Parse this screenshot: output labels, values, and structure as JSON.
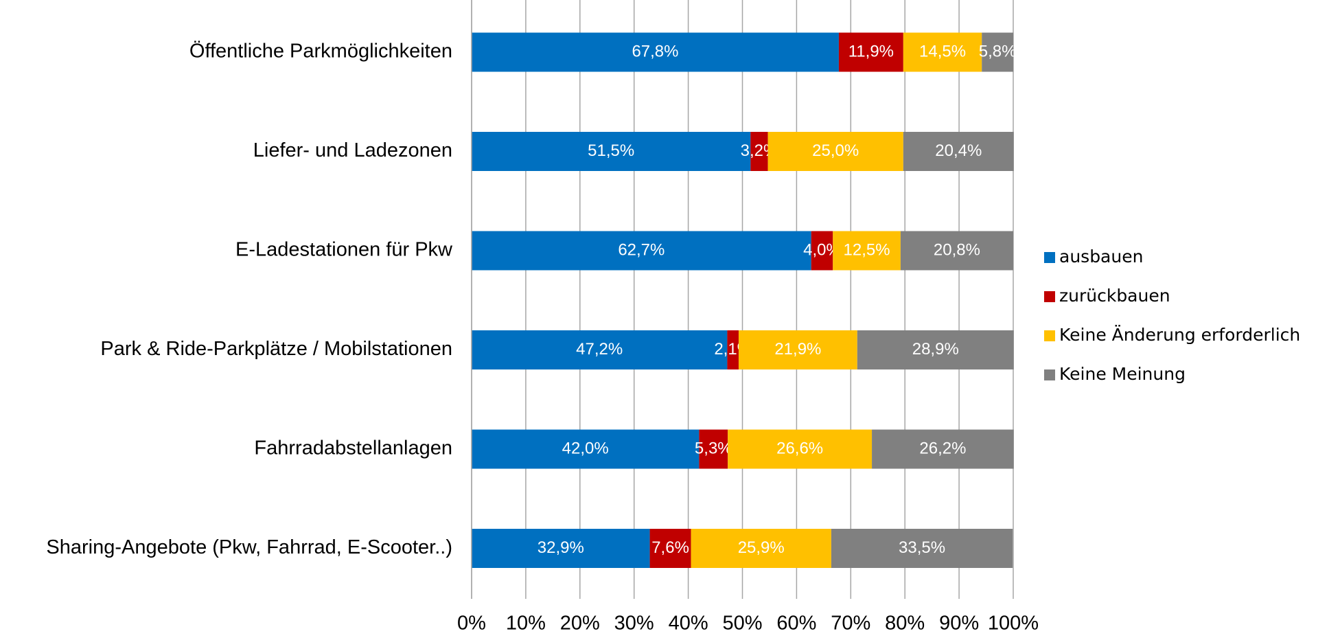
{
  "chart_data": {
    "type": "bar",
    "orientation": "horizontal",
    "stacked": true,
    "categories": [
      "Öffentliche Parkmöglichkeiten",
      "Liefer- und Ladezonen",
      "E-Ladestationen für Pkw",
      "Park & Ride-Parkplätze / Mobilstationen",
      "Fahrradabstellanlagen",
      "Sharing-Angebote (Pkw, Fahrrad, E-Scooter..)"
    ],
    "series": [
      {
        "name": "ausbauen",
        "color": "#0070c0",
        "values": [
          67.8,
          51.5,
          62.7,
          47.2,
          42.0,
          32.9
        ],
        "value_labels": [
          "67,8%",
          "51,5%",
          "62,7%",
          "47,2%",
          "42,0%",
          "32,9%"
        ]
      },
      {
        "name": "zurückbauen",
        "color": "#c00000",
        "values": [
          11.9,
          3.2,
          4.0,
          2.1,
          5.3,
          7.6
        ],
        "value_labels": [
          "11,9%",
          "3,2%",
          "4,0%",
          "2,1%",
          "5,3%",
          "7,6%"
        ]
      },
      {
        "name": "Keine Änderung erforderlich",
        "color": "#ffc000",
        "values": [
          14.5,
          25.0,
          12.5,
          21.9,
          26.6,
          25.9
        ],
        "value_labels": [
          "14,5%",
          "25,0%",
          "12,5%",
          "21,9%",
          "26,6%",
          "25,9%"
        ]
      },
      {
        "name": "Keine Meinung",
        "color": "#808080",
        "values": [
          5.8,
          20.4,
          20.8,
          28.9,
          26.2,
          33.5
        ],
        "value_labels": [
          "5,8%",
          "20,4%",
          "20,8%",
          "28,9%",
          "26,2%",
          "33,5%"
        ]
      }
    ],
    "xlim": [
      0,
      100
    ],
    "xticks": [
      {
        "value": 0,
        "label": "0%"
      },
      {
        "value": 10,
        "label": "10%"
      },
      {
        "value": 20,
        "label": "20%"
      },
      {
        "value": 30,
        "label": "30%"
      },
      {
        "value": 40,
        "label": "40%"
      },
      {
        "value": 50,
        "label": "50%"
      },
      {
        "value": 60,
        "label": "60%"
      },
      {
        "value": 70,
        "label": "70%"
      },
      {
        "value": 80,
        "label": "80%"
      },
      {
        "value": 90,
        "label": "90%"
      },
      {
        "value": 100,
        "label": "100%"
      }
    ],
    "grid": true,
    "legend": "right"
  }
}
